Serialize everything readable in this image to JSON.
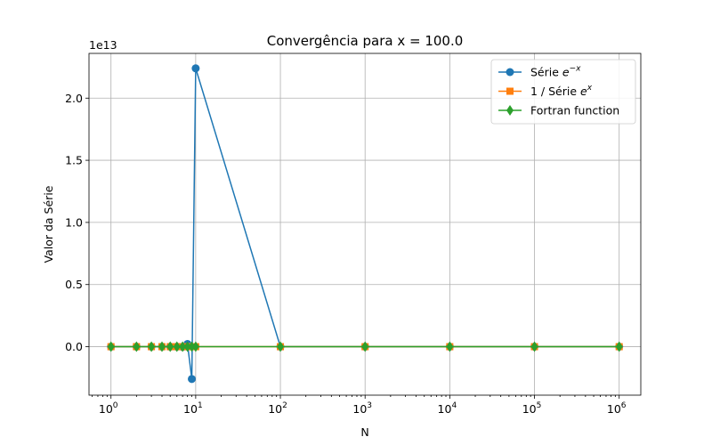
{
  "chart_data": {
    "type": "line",
    "title": "Convergência para x = 100.0",
    "xlabel": "N",
    "ylabel": "Valor da Série",
    "xscale": "log",
    "xlim": [
      0.55,
      1800000
    ],
    "ylim": [
      -3900000000000.0,
      23600000000000.0
    ],
    "offset_text": "1e13",
    "y_ticks": [
      0,
      5000000000000.0,
      10000000000000.0,
      15000000000000.0,
      20000000000000.0
    ],
    "y_tick_labels": [
      "0.0",
      "0.5",
      "1.0",
      "1.5",
      "2.0"
    ],
    "x_ticks": [
      1,
      10,
      100,
      1000,
      10000,
      100000,
      1000000
    ],
    "x_tick_labels": [
      {
        "base": "10",
        "exp": "0"
      },
      {
        "base": "10",
        "exp": "1"
      },
      {
        "base": "10",
        "exp": "2"
      },
      {
        "base": "10",
        "exp": "3"
      },
      {
        "base": "10",
        "exp": "4"
      },
      {
        "base": "10",
        "exp": "5"
      },
      {
        "base": "10",
        "exp": "6"
      }
    ],
    "grid": true,
    "legend_position": "top-right",
    "x": [
      1,
      2,
      3,
      4,
      5,
      6,
      7,
      8,
      9,
      10,
      100,
      1000,
      10000,
      100000,
      1000000
    ],
    "series": [
      {
        "legend_main": "Série ",
        "legend_base": "e",
        "legend_exp": "−x",
        "color": "#1f77b4",
        "marker": "circle",
        "values": [
          -99,
          4901,
          -161799,
          4004901,
          -79299099,
          1300000000.0,
          -18000000000.0,
          220000000000.0,
          -2600000000000.0,
          22400000000000.0,
          0,
          0,
          0,
          0,
          0
        ]
      },
      {
        "legend_main": "1 / Série ",
        "legend_base": "e",
        "legend_exp": "x",
        "color": "#ff7f0e",
        "marker": "square",
        "values": [
          0,
          0,
          0,
          0,
          0,
          0,
          0,
          0,
          0,
          0,
          0,
          0,
          0,
          0,
          0
        ]
      },
      {
        "legend_main": "Fortran function",
        "legend_base": "",
        "legend_exp": "",
        "color": "#2ca02c",
        "marker": "diamond",
        "values": [
          0,
          0,
          0,
          0,
          0,
          0,
          0,
          0,
          0,
          0,
          0,
          0,
          0,
          0,
          0
        ]
      }
    ]
  }
}
